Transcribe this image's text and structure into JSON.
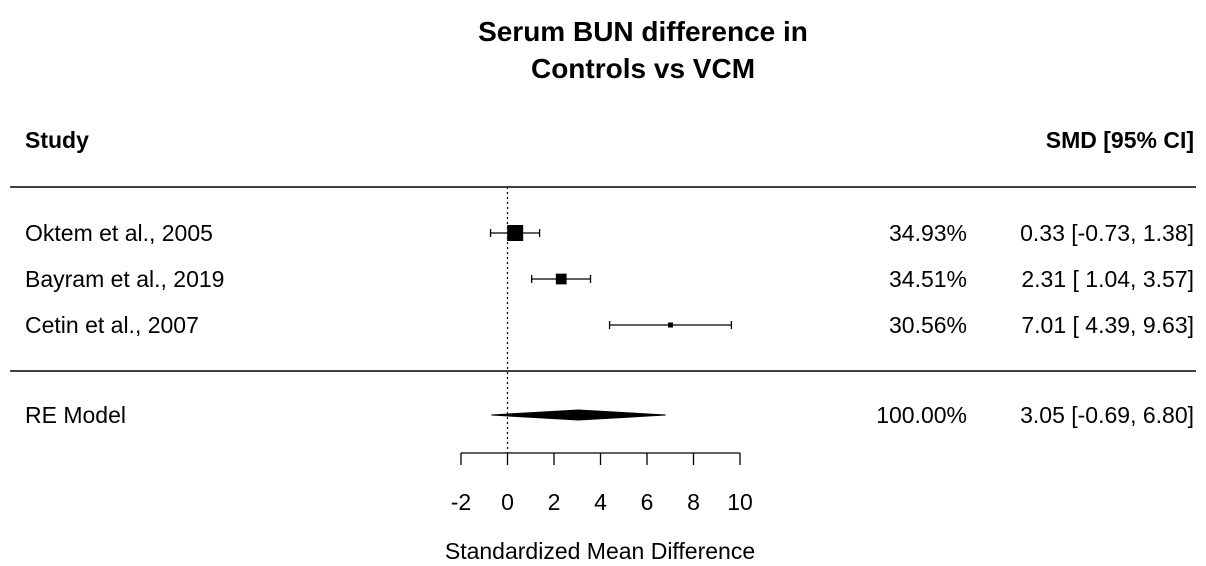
{
  "chart_data": {
    "type": "forest",
    "title": [
      "Serum BUN difference in",
      "Controls vs VCM"
    ],
    "column_headers": {
      "study": "Study",
      "estimate": "SMD [95% CI]"
    },
    "xlabel": "Standardized Mean Difference",
    "xlim": [
      -2,
      10
    ],
    "xticks": [
      -2,
      0,
      2,
      4,
      6,
      8,
      10
    ],
    "reference_line": 0,
    "studies": [
      {
        "label": "Oktem et al., 2005",
        "weight": "34.93%",
        "ci_text": "0.33 [-0.73, 1.38]",
        "smd": 0.33,
        "lower": -0.73,
        "upper": 1.38,
        "w": 34.93
      },
      {
        "label": "Bayram et al., 2019",
        "weight": "34.51%",
        "ci_text": "2.31 [ 1.04, 3.57]",
        "smd": 2.31,
        "lower": 1.04,
        "upper": 3.57,
        "w": 34.51
      },
      {
        "label": "Cetin et al., 2007",
        "weight": "30.56%",
        "ci_text": "7.01 [ 4.39, 9.63]",
        "smd": 7.01,
        "lower": 4.39,
        "upper": 9.63,
        "w": 30.56
      }
    ],
    "summary": {
      "label": "RE Model",
      "weight": "100.00%",
      "ci_text": "3.05 [-0.69, 6.80]",
      "smd": 3.05,
      "lower": -0.69,
      "upper": 6.8
    }
  }
}
